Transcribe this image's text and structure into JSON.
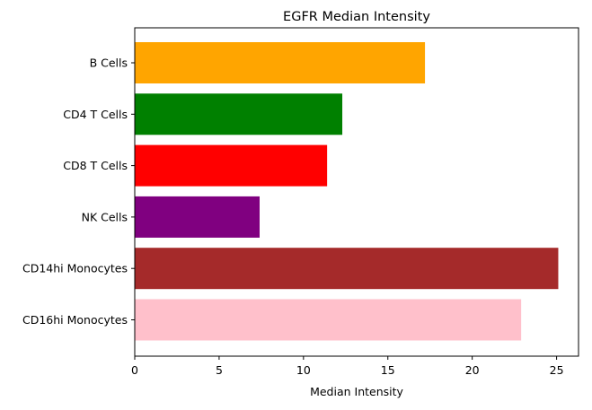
{
  "chart_data": {
    "type": "bar",
    "orientation": "horizontal",
    "title": "EGFR Median Intensity",
    "xlabel": "Median Intensity",
    "ylabel": "",
    "xlim": [
      0,
      26.3
    ],
    "xticks": [
      0,
      5,
      10,
      15,
      20,
      25
    ],
    "grid": false,
    "categories": [
      "B Cells",
      "CD4 T Cells",
      "CD8 T Cells",
      "NK Cells",
      "CD14hi Monocytes",
      "CD16hi Monocytes"
    ],
    "values": [
      17.2,
      12.3,
      11.4,
      7.4,
      25.1,
      22.9
    ],
    "colors": [
      "#ffa500",
      "#008000",
      "#ff0000",
      "#800080",
      "#a52a2a",
      "#ffc0cb"
    ]
  }
}
